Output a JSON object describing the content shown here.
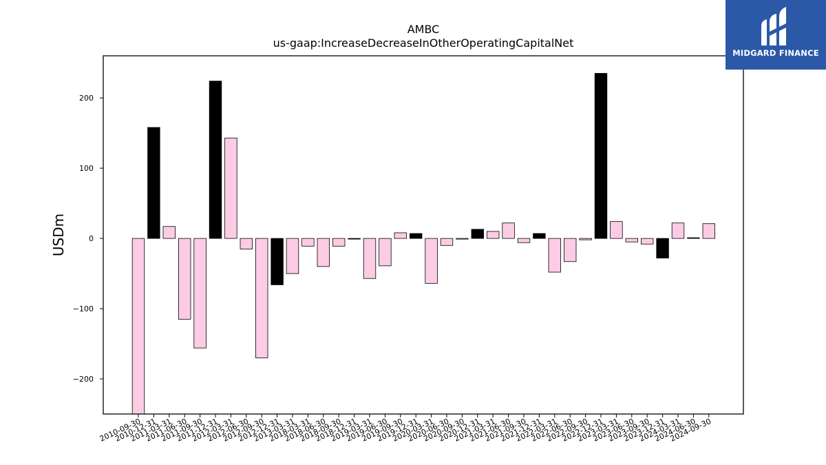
{
  "chart_data": {
    "type": "bar",
    "title": "AMBC",
    "subtitle": "us-gaap:IncreaseDecreaseInOtherOperatingCapitalNet",
    "xlabel": "",
    "ylabel": "USDm",
    "ylim": [
      -250,
      260
    ],
    "yticks": [
      -200,
      -100,
      0,
      100,
      200
    ],
    "grid": false,
    "colors": {
      "default": "#fbcce4",
      "highlight": "#000000",
      "edge": "#000000"
    },
    "categories": [
      "2010-09-30",
      "2010-12-31",
      "2011-03-31",
      "2011-06-30",
      "2011-09-30",
      "2011-12-31",
      "2012-03-31",
      "2012-06-30",
      "2012-09-30",
      "2012-12-31",
      "2013-03-31",
      "2018-03-31",
      "2018-06-30",
      "2018-09-30",
      "2018-12-31",
      "2019-03-31",
      "2019-06-30",
      "2019-09-30",
      "2019-12-31",
      "2020-03-31",
      "2020-06-30",
      "2020-09-30",
      "2020-12-31",
      "2021-03-31",
      "2021-06-30",
      "2021-09-30",
      "2021-12-31",
      "2022-03-31",
      "2022-06-30",
      "2022-09-30",
      "2022-12-31",
      "2023-03-31",
      "2023-06-30",
      "2023-09-30",
      "2023-12-31",
      "2024-03-31",
      "2024-06-30",
      "2024-09-30"
    ],
    "values": [
      -250,
      158,
      17,
      -115,
      -156,
      224,
      143,
      -15,
      -170,
      -66,
      -50,
      -11,
      -40,
      -11,
      -1,
      -57,
      -39,
      8,
      7,
      -64,
      -10,
      -1,
      13,
      10,
      22,
      -6,
      7,
      -48,
      -33,
      -2,
      235,
      24,
      -5,
      -8,
      -28,
      22,
      1,
      21
    ],
    "highlight": [
      false,
      true,
      false,
      false,
      false,
      true,
      false,
      false,
      false,
      true,
      false,
      false,
      false,
      false,
      true,
      false,
      false,
      false,
      true,
      false,
      false,
      false,
      true,
      false,
      false,
      false,
      true,
      false,
      false,
      false,
      true,
      false,
      false,
      false,
      true,
      false,
      true,
      false
    ]
  },
  "logo": {
    "text": "MIDGARD FINANCE",
    "color": "#2b59a8"
  }
}
